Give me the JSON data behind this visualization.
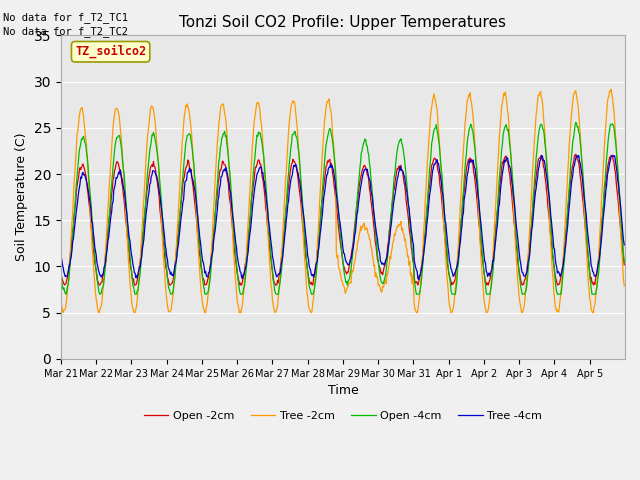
{
  "title": "Tonzi Soil CO2 Profile: Upper Temperatures",
  "ylabel": "Soil Temperature (C)",
  "xlabel": "Time",
  "ylim": [
    0,
    35
  ],
  "yticks": [
    0,
    5,
    10,
    15,
    20,
    25,
    30,
    35
  ],
  "note1": "No data for f_T2_TC1",
  "note2": "No data for f_T2_TC2",
  "box_label": "TZ_soilco2",
  "legend": [
    "Open -2cm",
    "Tree -2cm",
    "Open -4cm",
    "Tree -4cm"
  ],
  "colors": [
    "#dd0000",
    "#ff9900",
    "#00bb00",
    "#0000cc"
  ],
  "xtick_labels": [
    "Mar 21",
    "Mar 22",
    "Mar 23",
    "Mar 24",
    "Mar 25",
    "Mar 26",
    "Mar 27",
    "Mar 28",
    "Mar 29",
    "Mar 30",
    "Mar 31",
    "Apr 1",
    "Apr 2",
    "Apr 3",
    "Apr 4",
    "Apr 5"
  ],
  "background_color": "#f0f0f0",
  "plot_bg": "#e8e8e8",
  "figsize": [
    6.4,
    4.8
  ],
  "dpi": 100
}
